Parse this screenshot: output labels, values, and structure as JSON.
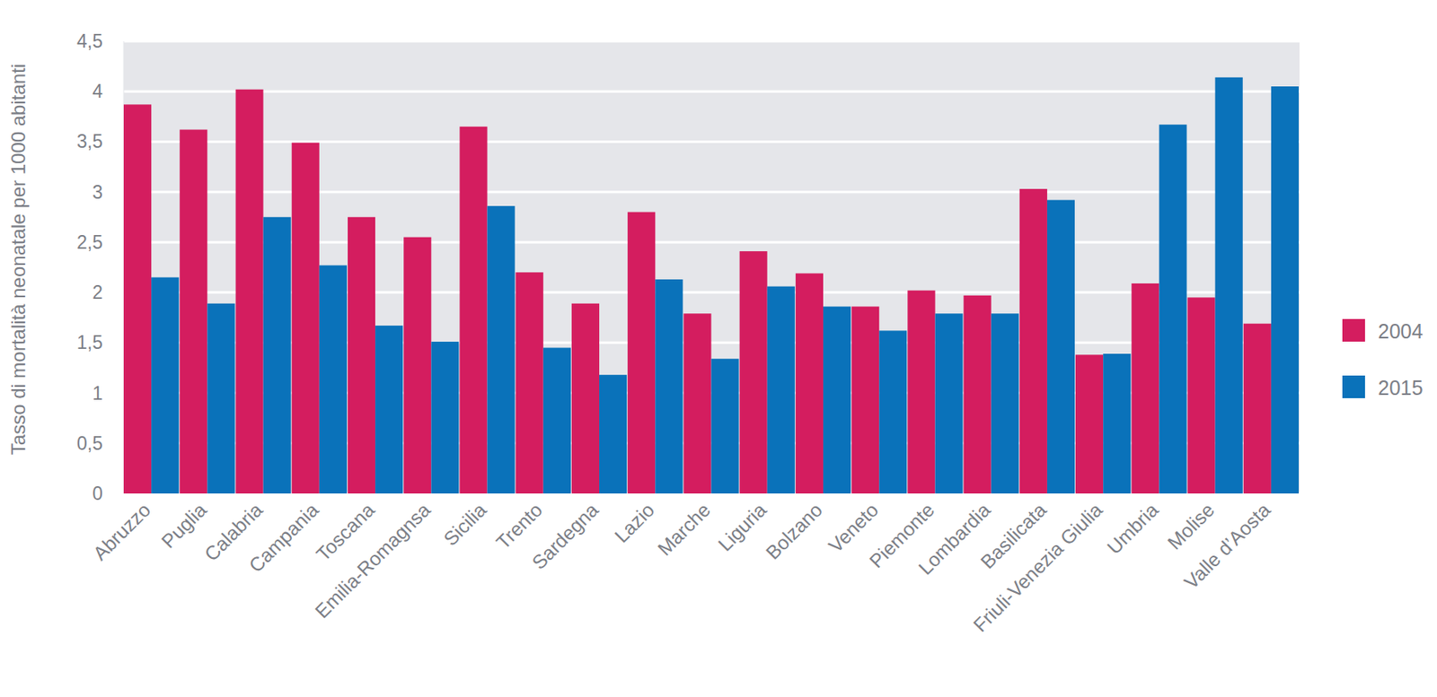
{
  "chart_data": {
    "type": "bar",
    "y_label": "Tasso di mortalità neonatale per 1000 abitanti",
    "categories": [
      "Abruzzo",
      "Puglia",
      "Calabria",
      "Campania",
      "Toscana",
      "Emilia-Romagnsa",
      "Sicilia",
      "Trento",
      "Sardegna",
      "Lazio",
      "Marche",
      "Liguria",
      "Bolzano",
      "Veneto",
      "Piemonte",
      "Lombardia",
      "Basilicata",
      "Friuli-Venezia Giulia",
      "Umbria",
      "Molise",
      "Valle d’Aosta"
    ],
    "series": [
      {
        "name": "2004",
        "color": "#d41d5f",
        "values": [
          3.87,
          3.62,
          4.02,
          3.49,
          2.75,
          2.55,
          3.65,
          2.2,
          1.89,
          2.8,
          1.79,
          2.41,
          2.19,
          1.86,
          2.02,
          1.97,
          3.03,
          1.38,
          2.09,
          1.95,
          1.69
        ]
      },
      {
        "name": "2015",
        "color": "#0a72ba",
        "values": [
          2.15,
          1.89,
          2.75,
          2.27,
          1.67,
          1.51,
          2.86,
          1.45,
          1.18,
          2.13,
          1.34,
          2.06,
          1.86,
          1.62,
          1.79,
          1.79,
          2.92,
          1.39,
          3.67,
          4.14,
          4.05
        ]
      }
    ],
    "ylim": [
      0,
      4.5
    ],
    "yticks": [
      0,
      {
        "value": 0.5,
        "label": "0,5"
      },
      1,
      {
        "value": 1.5,
        "label": "1,5"
      },
      2,
      {
        "value": 2.5,
        "label": "2,5"
      },
      3,
      {
        "value": 3.5,
        "label": "3,5"
      },
      4,
      {
        "value": 4.5,
        "label": "4,5"
      }
    ],
    "grid": true,
    "legend": "right"
  }
}
